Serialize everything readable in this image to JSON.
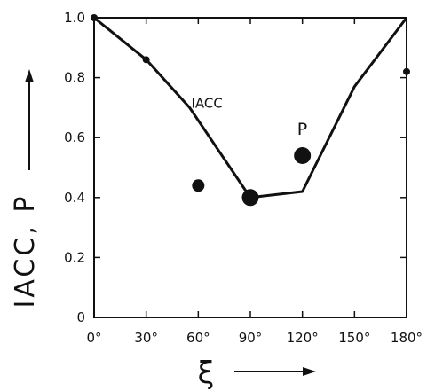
{
  "chart_data": {
    "type": "line",
    "xlabel": "ξ",
    "ylabel": "IACC, P",
    "xlim": [
      0,
      180
    ],
    "ylim": [
      0,
      1.0
    ],
    "x_ticks": [
      0,
      30,
      60,
      90,
      120,
      150,
      180
    ],
    "x_tick_labels": [
      "0°",
      "30°",
      "60°",
      "90°",
      "120°",
      "150°",
      "180°"
    ],
    "y_ticks": [
      0,
      0.2,
      0.4,
      0.6,
      0.8,
      1.0
    ],
    "y_tick_labels": [
      "0",
      "0.2",
      "0.4",
      "0.6",
      "0.8",
      "1.0"
    ],
    "grid": false,
    "series": [
      {
        "name": "IACC",
        "kind": "line",
        "points": [
          [
            0,
            1.0
          ],
          [
            30,
            0.86
          ],
          [
            55,
            0.7
          ],
          [
            90,
            0.4
          ],
          [
            120,
            0.42
          ],
          [
            150,
            0.77
          ],
          [
            180,
            1.0
          ]
        ]
      },
      {
        "name": "P",
        "kind": "scatter",
        "points": [
          [
            0,
            1.0
          ],
          [
            30,
            0.86
          ],
          [
            60,
            0.44
          ],
          [
            90,
            0.4
          ],
          [
            120,
            0.54
          ],
          [
            180,
            0.82
          ]
        ],
        "marker_sizes": [
          "small",
          "small",
          "medium",
          "large",
          "large",
          "small"
        ]
      }
    ],
    "annotations": [
      {
        "text": "IACC",
        "x": 56,
        "y": 0.7
      },
      {
        "text": "P",
        "x": 117,
        "y": 0.61
      }
    ]
  }
}
